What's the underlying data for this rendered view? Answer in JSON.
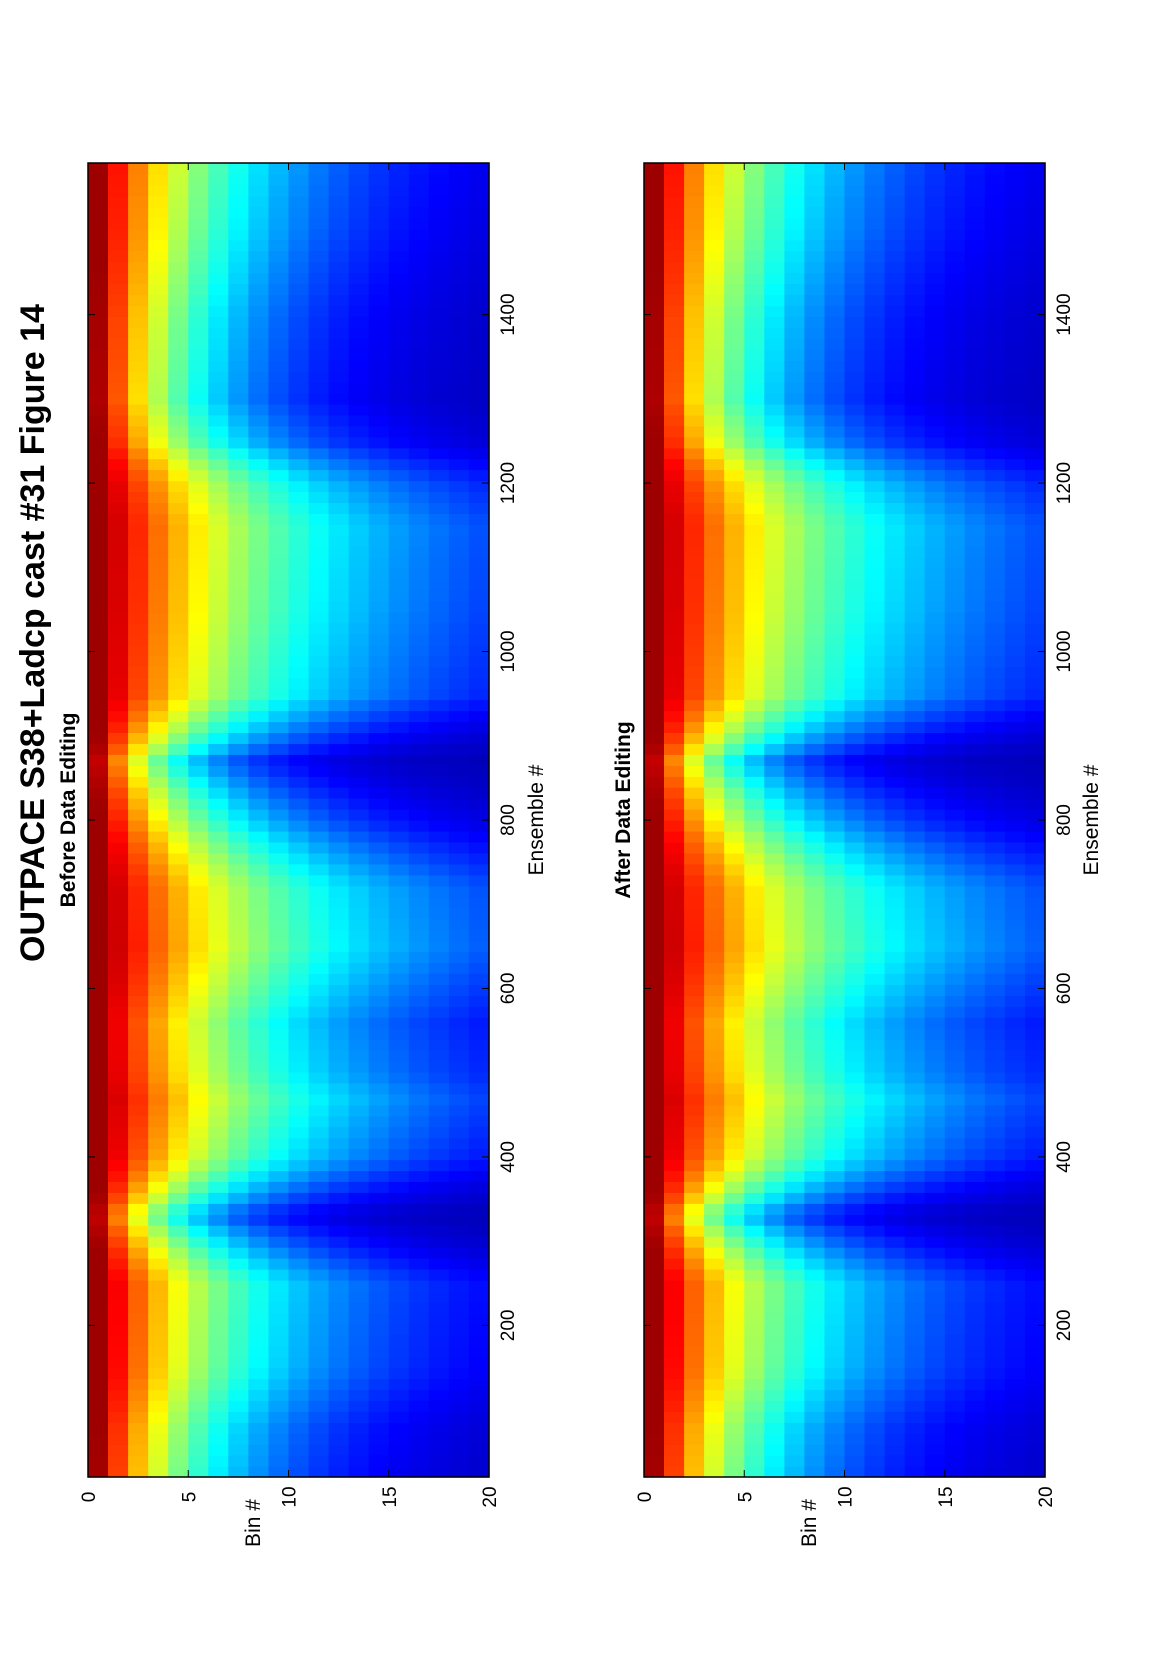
{
  "figure": {
    "title": "OUTPACE S38+Ladcp cast #31  Figure 14"
  },
  "chart_data": [
    {
      "type": "heatmap",
      "title": "Before Data Editing",
      "xlabel": "Ensemble #",
      "ylabel": "Bin #",
      "xlim": [
        20,
        1580
      ],
      "ylim": [
        0,
        20
      ],
      "xticks": [
        "200",
        "400",
        "600",
        "800",
        "1000",
        "1200",
        "1400"
      ],
      "yticks": [
        "0",
        "5",
        "10",
        "15",
        "20"
      ],
      "colormap": "jet",
      "value_range": [
        0,
        1
      ],
      "grid": false,
      "n_bins": 20,
      "description_of_values": "relative signal level per bin, decreasing with bin number; bands of low-bin high values that vary with ensemble",
      "band_profile": {
        "x": [
          20,
          80,
          150,
          250,
          330,
          400,
          470,
          500,
          560,
          650,
          720,
          800,
          870,
          950,
          1050,
          1150,
          1200,
          1250,
          1300,
          1400,
          1450,
          1500,
          1580
        ],
        "decay_bins": [
          5.5,
          6.0,
          7.5,
          8.0,
          4.0,
          8.5,
          10.0,
          9.0,
          8.5,
          11.0,
          10.5,
          6.5,
          4.0,
          9.0,
          10.0,
          10.5,
          9.0,
          6.0,
          5.0,
          5.5,
          6.0,
          6.5,
          7.0
        ]
      },
      "max_color": "#7f0000",
      "min_color": "#00008f",
      "series": []
    },
    {
      "type": "heatmap",
      "title": "After Data Editing",
      "xlabel": "Ensemble #",
      "ylabel": "Bin #",
      "xlim": [
        20,
        1580
      ],
      "ylim": [
        0,
        20
      ],
      "xticks": [
        "200",
        "400",
        "600",
        "800",
        "1000",
        "1200",
        "1400"
      ],
      "yticks": [
        "0",
        "5",
        "10",
        "15",
        "20"
      ],
      "colormap": "jet",
      "value_range": [
        0,
        1
      ],
      "grid": false,
      "n_bins": 20,
      "band_profile": {
        "x": [
          20,
          80,
          150,
          250,
          330,
          400,
          470,
          500,
          560,
          650,
          720,
          800,
          870,
          950,
          1050,
          1150,
          1200,
          1250,
          1300,
          1400,
          1450,
          1500,
          1580
        ],
        "decay_bins": [
          5.5,
          6.0,
          7.5,
          8.0,
          4.0,
          8.5,
          10.0,
          9.0,
          8.5,
          11.0,
          10.5,
          6.5,
          4.0,
          9.0,
          10.0,
          10.5,
          9.0,
          6.0,
          5.0,
          5.5,
          6.0,
          6.5,
          7.0
        ]
      },
      "max_color": "#7f0000",
      "min_color": "#00008f",
      "series": []
    }
  ]
}
